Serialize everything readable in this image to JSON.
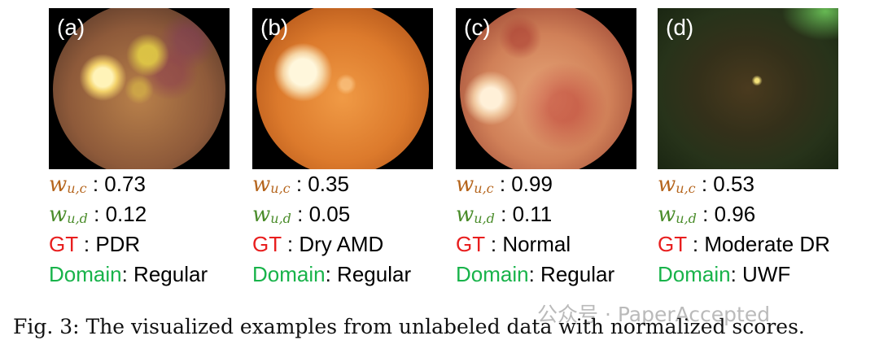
{
  "panels": [
    {
      "label": "(a)",
      "wuc": "0.73",
      "wud": "0.12",
      "gt": "PDR",
      "domain": "Regular"
    },
    {
      "label": "(b)",
      "wuc": "0.35",
      "wud": "0.05",
      "gt": "Dry AMD",
      "domain": "Regular"
    },
    {
      "label": "(c)",
      "wuc": "0.99",
      "wud": "0.11",
      "gt": "Normal",
      "domain": "Regular"
    },
    {
      "label": "(d)",
      "wuc": "0.53",
      "wud": "0.96",
      "gt": "Moderate DR",
      "domain": "UWF"
    }
  ],
  "labels": {
    "w": "w",
    "sub_c": "u,c",
    "sub_d": "u,d",
    "colon": " : ",
    "gt": "GT",
    "gt_sep": " : ",
    "domain": "Domain",
    "domain_sep": ": "
  },
  "caption": "Fig. 3: The visualized examples from unlabeled data with normalized scores.",
  "watermark": "公众号 · PaperAccepted",
  "colors": {
    "wuc": "#b5651d",
    "wud": "#4a8c2a",
    "gt": "#e81e1e",
    "domain": "#18b34a"
  }
}
